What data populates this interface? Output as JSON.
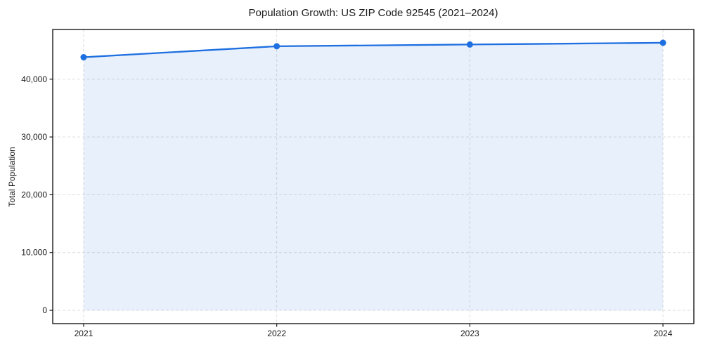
{
  "page": {
    "title": "Population Growth: US ZIP Code 92545 (2021–2024)"
  },
  "chart_data": {
    "type": "area",
    "title": "Population Growth: US ZIP Code 92545 (2021–2024)",
    "xlabel": "",
    "ylabel": "Total Population",
    "series": [
      {
        "name": "Total Population",
        "x": [
          2021,
          2022,
          2023,
          2024
        ],
        "values": [
          43800,
          45700,
          46000,
          46300
        ]
      }
    ],
    "xticks": {
      "values": [
        2021,
        2022,
        2023,
        2024
      ],
      "labels": [
        "2021",
        "2022",
        "2023",
        "2024"
      ]
    },
    "yticks": {
      "values": [
        0,
        10000,
        20000,
        30000,
        40000
      ],
      "labels": [
        "0",
        "10,000",
        "20,000",
        "30,000",
        "40,000"
      ]
    },
    "xlim": [
      2020.84,
      2024.16
    ],
    "ylim": [
      -2300,
      48600
    ],
    "grid": true,
    "grid_style": "dashed",
    "legend": "none",
    "marker": "circle",
    "area_baseline": 0,
    "colors": {
      "line": "#1e6fe0",
      "fill": "#1e6fe0",
      "fill_opacity": "0.1",
      "grid": "#d9d9d9",
      "spine": "#1a1a1a",
      "text": "#1a1a1a",
      "background": "#ffffff"
    }
  }
}
